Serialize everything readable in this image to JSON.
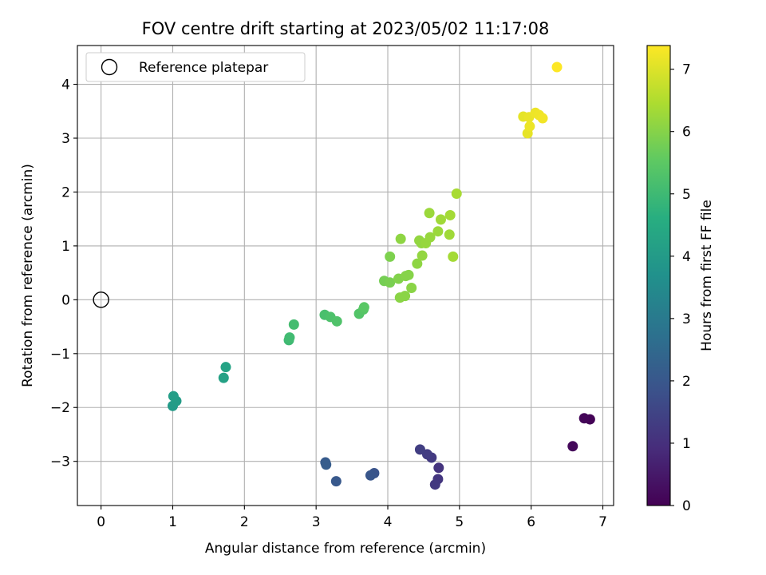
{
  "chart_data": {
    "type": "scatter",
    "title": "FOV centre drift starting at 2023/05/02 11:17:08",
    "xlabel": "Angular distance from reference (arcmin)",
    "ylabel": "Rotation from reference (arcmin)",
    "xlim": [
      -0.33,
      7.15
    ],
    "ylim": [
      -3.82,
      4.72
    ],
    "x_ticks": [
      0,
      1,
      2,
      3,
      4,
      5,
      6,
      7
    ],
    "y_ticks": [
      -3,
      -2,
      -1,
      0,
      1,
      2,
      3,
      4
    ],
    "grid": true,
    "legend": {
      "placement": "top-left",
      "label": "Reference platepar"
    },
    "reference_point": {
      "x": 0,
      "y": 0
    },
    "colorbar": {
      "label": "Hours from first FF file",
      "min": 0,
      "max": 7.38,
      "ticks": [
        0,
        1,
        2,
        3,
        4,
        5,
        6,
        7
      ],
      "colormap": "viridis"
    },
    "points": [
      {
        "x": 6.82,
        "y": -2.22,
        "c": 0.05
      },
      {
        "x": 6.74,
        "y": -2.2,
        "c": 0.1
      },
      {
        "x": 6.58,
        "y": -2.72,
        "c": 0.15
      },
      {
        "x": 4.71,
        "y": -3.12,
        "c": 1.1
      },
      {
        "x": 4.7,
        "y": -3.33,
        "c": 1.15
      },
      {
        "x": 4.66,
        "y": -3.43,
        "c": 1.2
      },
      {
        "x": 4.61,
        "y": -2.93,
        "c": 1.25
      },
      {
        "x": 4.55,
        "y": -2.87,
        "c": 1.3
      },
      {
        "x": 4.45,
        "y": -2.78,
        "c": 1.35
      },
      {
        "x": 3.81,
        "y": -3.22,
        "c": 1.9
      },
      {
        "x": 3.76,
        "y": -3.26,
        "c": 1.95
      },
      {
        "x": 3.28,
        "y": -3.37,
        "c": 2.05
      },
      {
        "x": 3.13,
        "y": -3.02,
        "c": 2.1
      },
      {
        "x": 3.14,
        "y": -3.06,
        "c": 2.15
      },
      {
        "x": 1.0,
        "y": -1.97,
        "c": 4.0
      },
      {
        "x": 1.05,
        "y": -1.88,
        "c": 4.05
      },
      {
        "x": 1.01,
        "y": -1.79,
        "c": 4.1
      },
      {
        "x": 1.71,
        "y": -1.45,
        "c": 4.2
      },
      {
        "x": 1.74,
        "y": -1.25,
        "c": 4.25
      },
      {
        "x": 2.62,
        "y": -0.75,
        "c": 5.0
      },
      {
        "x": 2.63,
        "y": -0.7,
        "c": 5.05
      },
      {
        "x": 2.69,
        "y": -0.46,
        "c": 5.1
      },
      {
        "x": 3.12,
        "y": -0.28,
        "c": 5.2
      },
      {
        "x": 3.2,
        "y": -0.32,
        "c": 5.25
      },
      {
        "x": 3.29,
        "y": -0.4,
        "c": 5.3
      },
      {
        "x": 3.6,
        "y": -0.26,
        "c": 5.35
      },
      {
        "x": 3.66,
        "y": -0.18,
        "c": 5.4
      },
      {
        "x": 3.67,
        "y": -0.14,
        "c": 5.45
      },
      {
        "x": 3.95,
        "y": 0.35,
        "c": 5.8
      },
      {
        "x": 4.03,
        "y": 0.32,
        "c": 5.85
      },
      {
        "x": 4.03,
        "y": 0.8,
        "c": 5.9
      },
      {
        "x": 4.15,
        "y": 0.39,
        "c": 5.95
      },
      {
        "x": 4.25,
        "y": 0.44,
        "c": 6.0
      },
      {
        "x": 4.29,
        "y": 0.46,
        "c": 6.0
      },
      {
        "x": 4.17,
        "y": 0.04,
        "c": 6.05
      },
      {
        "x": 4.24,
        "y": 0.07,
        "c": 6.05
      },
      {
        "x": 4.33,
        "y": 0.22,
        "c": 6.05
      },
      {
        "x": 4.18,
        "y": 1.13,
        "c": 6.1
      },
      {
        "x": 4.41,
        "y": 0.67,
        "c": 6.1
      },
      {
        "x": 4.48,
        "y": 0.82,
        "c": 6.15
      },
      {
        "x": 4.44,
        "y": 1.1,
        "c": 6.15
      },
      {
        "x": 4.47,
        "y": 1.05,
        "c": 6.15
      },
      {
        "x": 4.53,
        "y": 1.05,
        "c": 6.2
      },
      {
        "x": 4.59,
        "y": 1.16,
        "c": 6.2
      },
      {
        "x": 4.58,
        "y": 1.61,
        "c": 6.25
      },
      {
        "x": 4.7,
        "y": 1.27,
        "c": 6.25
      },
      {
        "x": 4.74,
        "y": 1.49,
        "c": 6.3
      },
      {
        "x": 4.86,
        "y": 1.21,
        "c": 6.3
      },
      {
        "x": 4.87,
        "y": 1.57,
        "c": 6.35
      },
      {
        "x": 4.91,
        "y": 0.8,
        "c": 6.35
      },
      {
        "x": 4.96,
        "y": 1.97,
        "c": 6.4
      },
      {
        "x": 5.89,
        "y": 3.4,
        "c": 7.1
      },
      {
        "x": 5.95,
        "y": 3.09,
        "c": 7.12
      },
      {
        "x": 5.97,
        "y": 3.39,
        "c": 7.15
      },
      {
        "x": 5.98,
        "y": 3.22,
        "c": 7.18
      },
      {
        "x": 6.06,
        "y": 3.47,
        "c": 7.2
      },
      {
        "x": 6.11,
        "y": 3.43,
        "c": 7.22
      },
      {
        "x": 6.16,
        "y": 3.37,
        "c": 7.25
      },
      {
        "x": 6.36,
        "y": 4.32,
        "c": 7.38
      }
    ]
  }
}
